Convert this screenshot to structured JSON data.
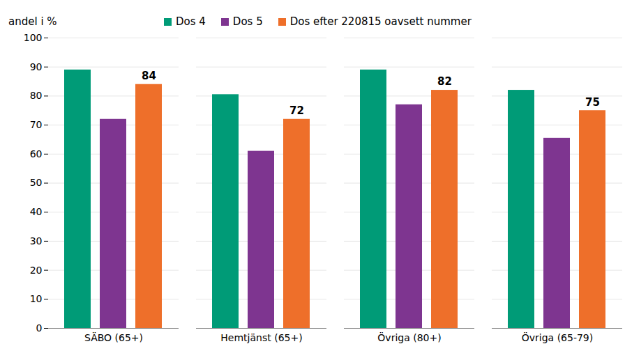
{
  "chart_data": {
    "type": "bar",
    "y_label": "andel i %",
    "categories": [
      "SÄBO (65+)",
      "Hemtjänst (65+)",
      "Övriga (80+)",
      "Övriga (65-79)"
    ],
    "series": [
      {
        "name": "Dos 4",
        "color": "#009b77",
        "values": [
          89,
          80.5,
          89,
          82
        ]
      },
      {
        "name": "Dos 5",
        "color": "#7e3590",
        "values": [
          72,
          61,
          77,
          65.5
        ]
      },
      {
        "name": "Dos efter 220815 oavsett nummer",
        "color": "#ee6f2a",
        "values": [
          84,
          72,
          82,
          75
        ],
        "data_labels": true
      }
    ],
    "ylim": [
      0,
      100
    ],
    "yticks": [
      0,
      10,
      20,
      30,
      40,
      50,
      60,
      70,
      80,
      90,
      100
    ],
    "grid": true,
    "legend": "top"
  }
}
